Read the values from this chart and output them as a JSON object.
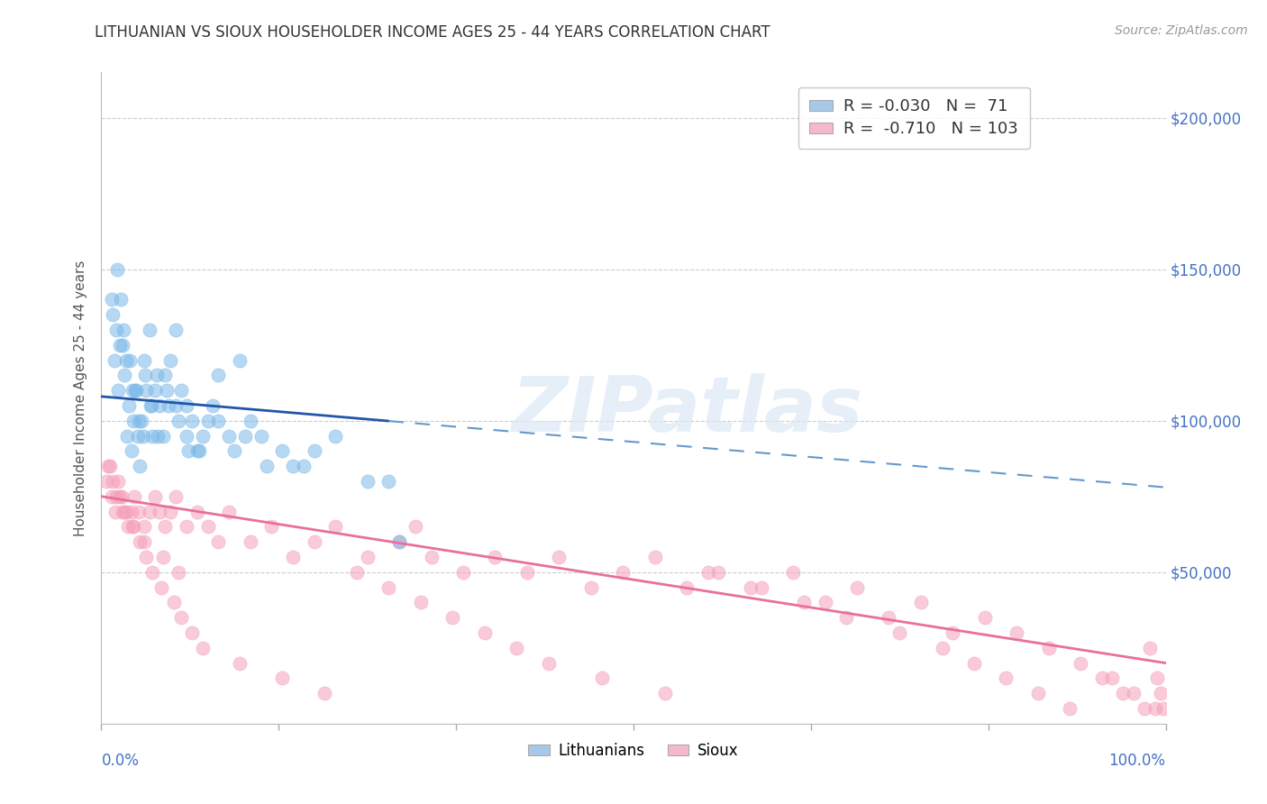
{
  "title": "LITHUANIAN VS SIOUX HOUSEHOLDER INCOME AGES 25 - 44 YEARS CORRELATION CHART",
  "source": "Source: ZipAtlas.com",
  "ylabel": "Householder Income Ages 25 - 44 years",
  "watermark": "ZIPatlas",
  "lith_R": -0.03,
  "lith_N": 71,
  "sioux_R": -0.71,
  "sioux_N": 103,
  "lith_scatter_color": "#7ab8e8",
  "sioux_scatter_color": "#f5a0b8",
  "lith_line_color": "#2255aa",
  "sioux_line_color": "#e8709a",
  "dashed_line_color": "#6699cc",
  "lith_legend_color": "#a8c8e8",
  "sioux_legend_color": "#f5b8cc",
  "background_color": "#ffffff",
  "grid_color": "#cccccc",
  "ylim": [
    0,
    215000
  ],
  "xlim": [
    0.0,
    100.0
  ],
  "right_ytick_values": [
    50000,
    100000,
    150000,
    200000
  ],
  "right_ytick_labels": [
    "$50,000",
    "$100,000",
    "$150,000",
    "$200,000"
  ],
  "lith_line_intercept": 108000,
  "lith_line_slope": -300,
  "lith_solid_end": 27,
  "sioux_line_intercept": 75000,
  "sioux_line_slope": -550,
  "marker_size": 120,
  "marker_alpha": 0.55,
  "legend_R_color": "#cc2200",
  "legend_N_color": "#2255cc",
  "lith_x_seed": [
    1.2,
    1.4,
    1.6,
    1.8,
    2.0,
    2.2,
    2.4,
    2.6,
    2.8,
    3.0,
    3.2,
    3.4,
    3.6,
    3.8,
    4.0,
    4.2,
    4.5,
    4.8,
    5.0,
    5.5,
    6.0,
    6.5,
    7.0,
    7.5,
    8.0,
    8.5,
    9.0,
    10.0,
    11.0,
    12.0,
    13.0,
    14.0,
    15.0,
    17.0,
    19.0,
    22.0,
    27.0,
    1.0,
    1.5,
    2.1,
    2.7,
    3.3,
    3.9,
    4.6,
    5.2,
    5.8,
    6.3,
    7.2,
    8.2,
    9.5,
    10.5,
    12.5,
    15.5,
    20.0,
    25.0,
    1.1,
    1.7,
    2.3,
    2.9,
    3.5,
    4.1,
    4.7,
    5.3,
    6.1,
    7.0,
    8.0,
    9.2,
    11.0,
    13.5,
    18.0,
    28.0
  ],
  "lith_y_seed": [
    120000,
    130000,
    110000,
    140000,
    125000,
    115000,
    95000,
    105000,
    90000,
    100000,
    110000,
    95000,
    85000,
    100000,
    120000,
    110000,
    130000,
    95000,
    110000,
    105000,
    115000,
    120000,
    130000,
    110000,
    105000,
    100000,
    90000,
    100000,
    115000,
    95000,
    120000,
    100000,
    95000,
    90000,
    85000,
    95000,
    80000,
    140000,
    150000,
    130000,
    120000,
    110000,
    95000,
    105000,
    115000,
    95000,
    105000,
    100000,
    90000,
    95000,
    105000,
    90000,
    85000,
    90000,
    80000,
    135000,
    125000,
    120000,
    110000,
    100000,
    115000,
    105000,
    95000,
    110000,
    105000,
    95000,
    90000,
    100000,
    95000,
    85000,
    60000
  ],
  "sioux_x_seed": [
    0.5,
    0.8,
    1.0,
    1.3,
    1.6,
    1.9,
    2.2,
    2.5,
    2.8,
    3.1,
    3.5,
    4.0,
    4.5,
    5.0,
    5.5,
    6.0,
    6.5,
    7.0,
    8.0,
    9.0,
    10.0,
    11.0,
    12.0,
    14.0,
    16.0,
    18.0,
    20.0,
    22.0,
    25.0,
    28.0,
    31.0,
    34.0,
    37.0,
    40.0,
    43.0,
    46.0,
    49.0,
    52.0,
    55.0,
    58.0,
    62.0,
    65.0,
    68.0,
    71.0,
    74.0,
    77.0,
    80.0,
    83.0,
    86.0,
    89.0,
    92.0,
    95.0,
    97.0,
    99.0,
    0.6,
    1.1,
    1.7,
    2.3,
    2.9,
    3.6,
    4.2,
    4.8,
    5.6,
    6.8,
    7.5,
    8.5,
    9.5,
    13.0,
    17.0,
    21.0,
    24.0,
    27.0,
    30.0,
    33.0,
    36.0,
    39.0,
    42.0,
    47.0,
    53.0,
    57.0,
    61.0,
    66.0,
    70.0,
    75.0,
    79.0,
    82.0,
    85.0,
    88.0,
    91.0,
    94.0,
    96.0,
    98.0,
    98.5,
    99.2,
    99.5,
    99.8,
    1.4,
    2.0,
    3.0,
    4.0,
    5.8,
    7.2,
    29.5
  ],
  "sioux_y_seed": [
    80000,
    85000,
    75000,
    70000,
    80000,
    75000,
    70000,
    65000,
    70000,
    75000,
    70000,
    65000,
    70000,
    75000,
    70000,
    65000,
    70000,
    75000,
    65000,
    70000,
    65000,
    60000,
    70000,
    60000,
    65000,
    55000,
    60000,
    65000,
    55000,
    60000,
    55000,
    50000,
    55000,
    50000,
    55000,
    45000,
    50000,
    55000,
    45000,
    50000,
    45000,
    50000,
    40000,
    45000,
    35000,
    40000,
    30000,
    35000,
    30000,
    25000,
    20000,
    15000,
    10000,
    5000,
    85000,
    80000,
    75000,
    70000,
    65000,
    60000,
    55000,
    50000,
    45000,
    40000,
    35000,
    30000,
    25000,
    20000,
    15000,
    10000,
    50000,
    45000,
    40000,
    35000,
    30000,
    25000,
    20000,
    15000,
    10000,
    50000,
    45000,
    40000,
    35000,
    30000,
    25000,
    20000,
    15000,
    10000,
    5000,
    15000,
    10000,
    5000,
    25000,
    15000,
    10000,
    5000,
    75000,
    70000,
    65000,
    60000,
    55000,
    50000,
    65000
  ]
}
